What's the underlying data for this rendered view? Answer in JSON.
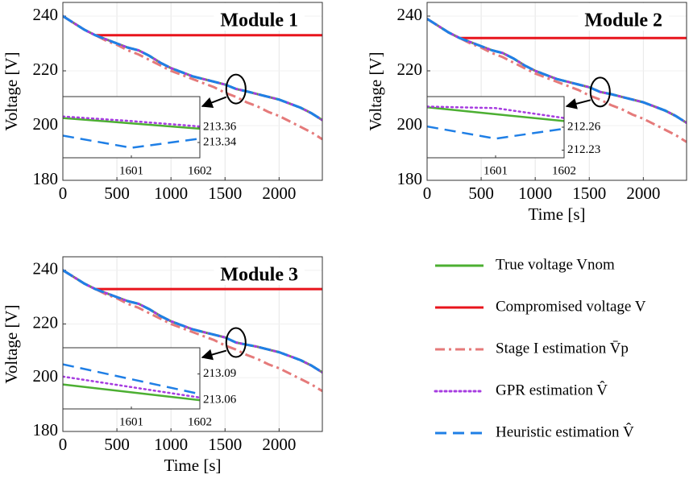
{
  "chart_data": [
    {
      "type": "line",
      "title": "Module 1",
      "ylabel": "Voltage [V]",
      "grid": true,
      "legend": false,
      "xlim": [
        0,
        2400
      ],
      "ylim": [
        180,
        245
      ],
      "xticks": [
        0,
        500,
        1000,
        1500,
        2000
      ],
      "yticks": [
        180,
        200,
        220,
        240
      ],
      "x": [
        0,
        100,
        200,
        300,
        400,
        500,
        600,
        700,
        800,
        900,
        1000,
        1100,
        1200,
        1300,
        1400,
        1500,
        1600,
        1700,
        1800,
        1900,
        2000,
        2100,
        2200,
        2300,
        2400
      ],
      "series": [
        {
          "name": "True voltage Vnom",
          "color": "#4caf32",
          "dash": "solid",
          "values": [
            240,
            237.5,
            235,
            233,
            231.5,
            230,
            228.5,
            227.5,
            225.5,
            223,
            221,
            219.5,
            218,
            217,
            216,
            215,
            213.4,
            212.5,
            211.5,
            210.5,
            209.5,
            208,
            206.5,
            204.5,
            202
          ]
        },
        {
          "name": "Compromised voltage V",
          "color": "#e8141c",
          "dash": "solid",
          "values": [
            null,
            null,
            null,
            233,
            233,
            233,
            233,
            233,
            233,
            233,
            233,
            233,
            233,
            233,
            233,
            233,
            233,
            233,
            233,
            233,
            233,
            233,
            233,
            233,
            233
          ]
        },
        {
          "name": "Stage I estimation V̄p",
          "color": "#e57a7a",
          "dash": "dashdot",
          "values": [
            240,
            237.5,
            235,
            233,
            231,
            229.5,
            227.5,
            226,
            224,
            222,
            220,
            218.5,
            217,
            215.5,
            214,
            212,
            210.5,
            208.5,
            207,
            205,
            203.5,
            201.5,
            199.5,
            197.5,
            195
          ]
        },
        {
          "name": "GPR estimation V̂",
          "color": "#a63ce0",
          "dash": "dotted",
          "values": [
            240,
            237.5,
            235,
            233,
            231.5,
            230,
            228.5,
            227.5,
            225.5,
            223,
            221,
            219.5,
            218,
            217,
            216,
            215,
            213.4,
            212.5,
            211.5,
            210.5,
            209.5,
            208,
            206.5,
            204.5,
            202
          ]
        },
        {
          "name": "Heuristic estimation V̂",
          "color": "#1f7fe6",
          "dash": "dashed",
          "values": [
            240,
            237.5,
            235,
            233,
            231.5,
            230,
            228.5,
            227.5,
            225.5,
            223,
            221,
            219.5,
            218,
            217,
            216,
            215,
            213.4,
            212.5,
            211.5,
            210.5,
            209.5,
            208,
            206.5,
            204.5,
            202
          ]
        }
      ],
      "inset": {
        "type": "line",
        "xlim": [
          1600,
          1602
        ],
        "ylim": [
          213.32,
          213.4
        ],
        "xticks": [
          1601,
          1602
        ],
        "yticks": [
          213.36,
          213.34
        ],
        "x": [
          1600,
          1601,
          1602
        ],
        "series": [
          {
            "color": "#4caf32",
            "dash": "solid",
            "values": [
              213.372,
              213.365,
              213.358
            ]
          },
          {
            "color": "#a63ce0",
            "dash": "dotted",
            "values": [
              213.374,
              213.368,
              213.361
            ]
          },
          {
            "color": "#1f7fe6",
            "dash": "dashed",
            "values": [
              213.349,
              213.333,
              213.345
            ]
          }
        ]
      }
    },
    {
      "type": "line",
      "title": "Module 2",
      "ylabel": "Voltage [V]",
      "xlabel": "Time [s]",
      "grid": true,
      "legend": false,
      "xlim": [
        0,
        2400
      ],
      "ylim": [
        180,
        245
      ],
      "xticks": [
        0,
        500,
        1000,
        1500,
        2000
      ],
      "yticks": [
        180,
        200,
        220,
        240
      ],
      "x": [
        0,
        100,
        200,
        300,
        400,
        500,
        600,
        700,
        800,
        900,
        1000,
        1100,
        1200,
        1300,
        1400,
        1500,
        1600,
        1700,
        1800,
        1900,
        2000,
        2100,
        2200,
        2300,
        2400
      ],
      "series": [
        {
          "name": "True voltage Vnom",
          "color": "#4caf32",
          "dash": "solid",
          "values": [
            239,
            236.5,
            234,
            232,
            230.5,
            229,
            227.5,
            226.5,
            224.5,
            222,
            220,
            218.5,
            217,
            216,
            215,
            214,
            212.3,
            211.5,
            210.5,
            209.5,
            208.5,
            207,
            205.5,
            203.5,
            201
          ]
        },
        {
          "name": "Compromised voltage V",
          "color": "#e8141c",
          "dash": "solid",
          "values": [
            null,
            null,
            null,
            232,
            232,
            232,
            232,
            232,
            232,
            232,
            232,
            232,
            232,
            232,
            232,
            232,
            232,
            232,
            232,
            232,
            232,
            232,
            232,
            232,
            232
          ]
        },
        {
          "name": "Stage I estimation V̄p",
          "color": "#e57a7a",
          "dash": "dashdot",
          "values": [
            239,
            236.5,
            234,
            232,
            230,
            228.5,
            226.5,
            225,
            223,
            221,
            219,
            217.5,
            216,
            214.5,
            213,
            211,
            209.5,
            207.5,
            206,
            204,
            202.5,
            200.5,
            198.5,
            196.5,
            194
          ]
        },
        {
          "name": "GPR estimation V̂",
          "color": "#a63ce0",
          "dash": "dotted",
          "values": [
            239,
            236.5,
            234,
            232,
            230.5,
            229,
            227.5,
            226.5,
            224.5,
            222,
            220,
            218.5,
            217,
            216,
            215,
            214,
            212.3,
            211.5,
            210.5,
            209.5,
            208.5,
            207,
            205.5,
            203.5,
            201
          ]
        },
        {
          "name": "Heuristic estimation V̂",
          "color": "#1f7fe6",
          "dash": "dashed",
          "values": [
            239,
            236.5,
            234,
            232,
            230.5,
            229,
            227.5,
            226.5,
            224.5,
            222,
            220,
            218.5,
            217,
            216,
            215,
            214,
            212.3,
            211.5,
            210.5,
            209.5,
            208.5,
            207,
            205.5,
            203.5,
            201
          ]
        }
      ],
      "inset": {
        "type": "line",
        "xlim": [
          1600,
          1602
        ],
        "ylim": [
          212.22,
          212.3
        ],
        "xticks": [
          1601,
          1602
        ],
        "yticks": [
          212.26,
          212.23
        ],
        "x": [
          1600,
          1601,
          1602
        ],
        "series": [
          {
            "color": "#4caf32",
            "dash": "solid",
            "values": [
              212.286,
              212.277,
              212.268
            ]
          },
          {
            "color": "#a63ce0",
            "dash": "dotted",
            "values": [
              212.287,
              212.285,
              212.272
            ]
          },
          {
            "color": "#1f7fe6",
            "dash": "dashed",
            "values": [
              212.261,
              212.245,
              212.258
            ]
          }
        ]
      }
    },
    {
      "type": "line",
      "title": "Module 3",
      "ylabel": "Voltage [V]",
      "xlabel": "Time [s]",
      "grid": true,
      "legend": true,
      "xlim": [
        0,
        2400
      ],
      "ylim": [
        180,
        245
      ],
      "xticks": [
        0,
        500,
        1000,
        1500,
        2000
      ],
      "yticks": [
        180,
        200,
        220,
        240
      ],
      "x": [
        0,
        100,
        200,
        300,
        400,
        500,
        600,
        700,
        800,
        900,
        1000,
        1100,
        1200,
        1300,
        1400,
        1500,
        1600,
        1700,
        1800,
        1900,
        2000,
        2100,
        2200,
        2300,
        2400
      ],
      "series": [
        {
          "name": "True voltage Vnom",
          "color": "#4caf32",
          "dash": "solid",
          "values": [
            240,
            237.5,
            235,
            233,
            231.5,
            230,
            228.5,
            227.5,
            225.5,
            223,
            221,
            219.5,
            218,
            217,
            216,
            215,
            213.1,
            212.3,
            211.5,
            210.5,
            209.5,
            208,
            206.5,
            204.5,
            202
          ]
        },
        {
          "name": "Compromised voltage V",
          "color": "#e8141c",
          "dash": "solid",
          "values": [
            null,
            null,
            null,
            233,
            233,
            233,
            233,
            233,
            233,
            233,
            233,
            233,
            233,
            233,
            233,
            233,
            233,
            233,
            233,
            233,
            233,
            233,
            233,
            233,
            233
          ]
        },
        {
          "name": "Stage I estimation V̄p",
          "color": "#e57a7a",
          "dash": "dashdot",
          "values": [
            240,
            237.5,
            235,
            233,
            231,
            229.5,
            227.5,
            226,
            224,
            222,
            220,
            218.5,
            217,
            215.5,
            214,
            212,
            210.5,
            208.5,
            207,
            205,
            203.5,
            201.5,
            199.5,
            197.5,
            195
          ]
        },
        {
          "name": "GPR estimation V̂",
          "color": "#a63ce0",
          "dash": "dotted",
          "values": [
            240,
            237.5,
            235,
            233,
            231.5,
            230,
            228.5,
            227.5,
            225.5,
            223,
            221,
            219.5,
            218,
            217,
            216,
            215,
            213.1,
            212.3,
            211.5,
            210.5,
            209.5,
            208,
            206.5,
            204.5,
            202
          ]
        },
        {
          "name": "Heuristic estimation V̂",
          "color": "#1f7fe6",
          "dash": "dashed",
          "values": [
            240,
            237.5,
            235,
            233,
            231.5,
            230,
            228.5,
            227.5,
            225.5,
            223,
            221,
            219.5,
            218,
            217,
            216,
            215,
            213.1,
            212.3,
            211.5,
            210.5,
            209.5,
            208,
            206.5,
            204.5,
            202
          ]
        }
      ],
      "inset": {
        "type": "line",
        "xlim": [
          1600,
          1602
        ],
        "ylim": [
          213.05,
          213.12
        ],
        "xticks": [
          1601,
          1602
        ],
        "yticks": [
          213.09,
          213.06
        ],
        "x": [
          1600,
          1601,
          1602
        ],
        "series": [
          {
            "color": "#4caf32",
            "dash": "solid",
            "values": [
              213.078,
              213.069,
              213.06
            ]
          },
          {
            "color": "#a63ce0",
            "dash": "dotted",
            "values": [
              213.087,
              213.075,
              213.063
            ]
          },
          {
            "color": "#1f7fe6",
            "dash": "dashed",
            "values": [
              213.101,
              213.084,
              213.067
            ]
          }
        ]
      }
    }
  ]
}
